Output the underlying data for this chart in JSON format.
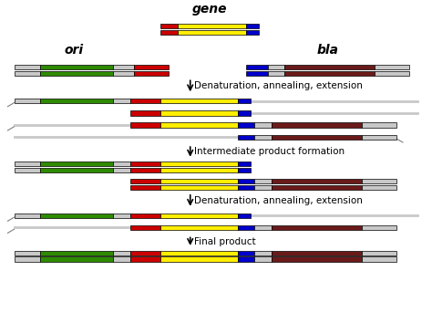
{
  "bg_color": "#ffffff",
  "colors": {
    "gray": "#c8c8c8",
    "green": "#2e8b00",
    "red": "#cc0000",
    "yellow": "#ffee00",
    "blue": "#0000cc",
    "brown": "#6b1a1a"
  },
  "labels": {
    "gene": "gene",
    "ori": "ori",
    "bla": "bla",
    "step1": "Denaturation, annealing, extension",
    "step2": "Intermediate product formation",
    "step3": "Denaturation, annealing, extension",
    "step4": "Final product"
  },
  "bar_height": 0.015,
  "bar_gap": 0.005
}
